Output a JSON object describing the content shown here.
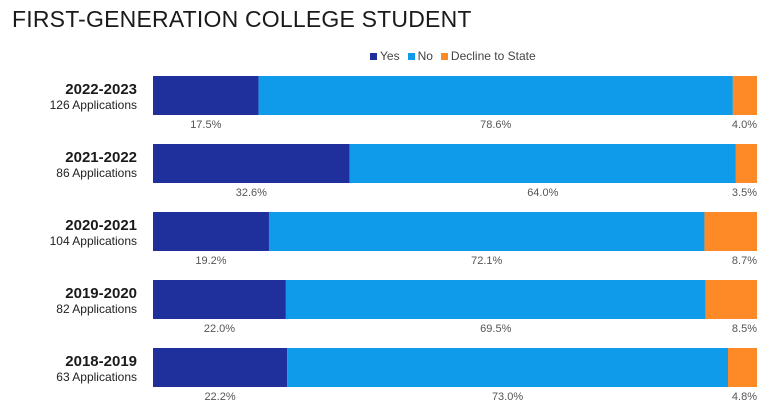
{
  "chart_data": {
    "type": "bar",
    "orientation": "horizontal",
    "stacked": true,
    "title": "FIRST-GENERATION COLLEGE STUDENT",
    "legend_position": "top",
    "categories": [
      "2022-2023",
      "2021-2022",
      "2020-2021",
      "2019-2020",
      "2018-2019"
    ],
    "subtitles": [
      "126 Applications",
      "86 Applications",
      "104 Applications",
      "82 Applications",
      "63 Applications"
    ],
    "series": [
      {
        "name": "Yes",
        "color": "#1f2f9c",
        "values": [
          17.5,
          32.6,
          19.2,
          22.0,
          22.2
        ],
        "labels": [
          "17.5%",
          "32.6%",
          "19.2%",
          "22.0%",
          "22.2%"
        ]
      },
      {
        "name": "No",
        "color": "#0f9bea",
        "values": [
          78.6,
          64.0,
          72.1,
          69.5,
          73.0
        ],
        "labels": [
          "78.6%",
          "64.0%",
          "72.1%",
          "69.5%",
          "73.0%"
        ]
      },
      {
        "name": "Decline to State",
        "color": "#fd8a26",
        "values": [
          4.0,
          3.5,
          8.7,
          8.5,
          4.8
        ],
        "labels": [
          "4.0%",
          "3.5%",
          "8.7%",
          "8.5%",
          "4.8%"
        ]
      }
    ],
    "xlim": [
      0,
      100
    ]
  }
}
